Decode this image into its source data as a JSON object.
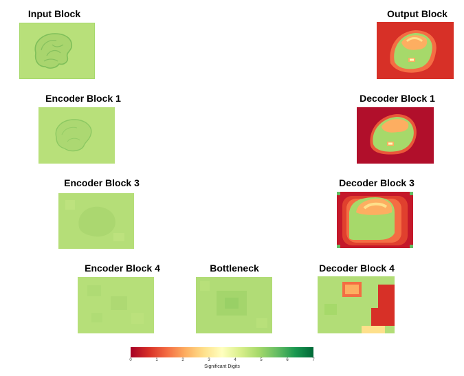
{
  "panels": {
    "input": {
      "title": "Input Block"
    },
    "enc1": {
      "title": "Encoder Block 1"
    },
    "enc3": {
      "title": "Encoder Block 3"
    },
    "enc4": {
      "title": "Encoder Block 4"
    },
    "bottleneck": {
      "title": "Bottleneck"
    },
    "dec4": {
      "title": "Decoder Block 4"
    },
    "dec3": {
      "title": "Decoder Block 3"
    },
    "dec1": {
      "title": "Decoder Block 1"
    },
    "output": {
      "title": "Output Block"
    }
  },
  "colorbar": {
    "label": "Significant Digits",
    "ticks": [
      "0",
      "1",
      "2",
      "3",
      "4",
      "5",
      "6",
      "7"
    ],
    "range": [
      0,
      7
    ],
    "colormap": "RdYlGn",
    "stops": [
      "#a50026",
      "#d73027",
      "#f46d43",
      "#fdae61",
      "#fee08b",
      "#ffffbf",
      "#d9ef8b",
      "#a6d96a",
      "#66bd63",
      "#1a9850",
      "#006837"
    ]
  }
}
